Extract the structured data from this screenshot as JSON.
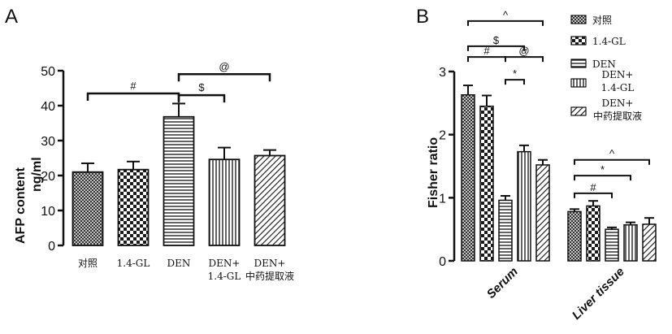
{
  "chart_data": [
    {
      "panel": "A",
      "type": "bar",
      "ylabel": "AFP content\nng/ml",
      "ylim": [
        0,
        50
      ],
      "yticks": [
        0,
        10,
        20,
        30,
        40,
        50
      ],
      "categories": [
        {
          "line1": "对照",
          "line2": ""
        },
        {
          "line1": "1.4-GL",
          "line2": ""
        },
        {
          "line1": "DEN",
          "line2": ""
        },
        {
          "line1": "DEN+",
          "line2": "1.4-GL"
        },
        {
          "line1": "DEN+",
          "line2": "中药提取液"
        }
      ],
      "values": [
        21,
        21.7,
        36.8,
        24.6,
        25.7
      ],
      "errors": [
        2.5,
        2.3,
        3.8,
        3.4,
        1.6
      ],
      "patterns": [
        "diamond",
        "checker",
        "hlines",
        "vlines",
        "diag"
      ],
      "annotations": [
        {
          "label": "#",
          "from": 0,
          "to": 2,
          "y": 43.5
        },
        {
          "label": "$",
          "from": 2,
          "to": 3,
          "y": 43
        },
        {
          "label": "@",
          "from": 2,
          "to": 4,
          "y": 49
        }
      ]
    },
    {
      "panel": "B",
      "type": "bar",
      "ylabel": "Fisher ratio",
      "ylim": [
        0,
        3
      ],
      "yticks": [
        0,
        1,
        2,
        3
      ],
      "groups": [
        "Serum",
        "Liver tissue"
      ],
      "series": [
        {
          "name": "对照",
          "values": [
            2.63,
            0.78
          ],
          "errors": [
            0.15,
            0.04
          ],
          "pattern": "diamond"
        },
        {
          "name": "1.4-GL",
          "values": [
            2.45,
            0.87
          ],
          "errors": [
            0.17,
            0.08
          ],
          "pattern": "checker"
        },
        {
          "name": "DEN",
          "values": [
            0.96,
            0.5
          ],
          "errors": [
            0.07,
            0.03
          ],
          "pattern": "hlines"
        },
        {
          "name": "DEN+\n1.4-GL",
          "values": [
            1.73,
            0.57
          ],
          "errors": [
            0.1,
            0.04
          ],
          "pattern": "vlines"
        },
        {
          "name": "DEN+\n中药提取液",
          "values": [
            1.52,
            0.58
          ],
          "errors": [
            0.08,
            0.1
          ],
          "pattern": "diag"
        }
      ],
      "annotations": [
        {
          "label": "^",
          "group": 0,
          "from": 0,
          "to": 4,
          "y": 3.8
        },
        {
          "label": "$",
          "group": 0,
          "from": 0,
          "to": 3,
          "y": 3.4
        },
        {
          "label": "#",
          "group": 0,
          "from": 0,
          "to": 2,
          "y": 3.23
        },
        {
          "label": "@",
          "group": 0,
          "from": 2,
          "to": 4,
          "y": 3.23
        },
        {
          "label": "*",
          "group": 0,
          "from": 2,
          "to": 3,
          "y": 2.87
        },
        {
          "label": "^",
          "group": 1,
          "from": 0,
          "to": 4,
          "y": 1.6
        },
        {
          "label": "*",
          "group": 1,
          "from": 0,
          "to": 3,
          "y": 1.35
        },
        {
          "label": "#",
          "group": 1,
          "from": 0,
          "to": 2,
          "y": 1.07
        }
      ]
    }
  ]
}
